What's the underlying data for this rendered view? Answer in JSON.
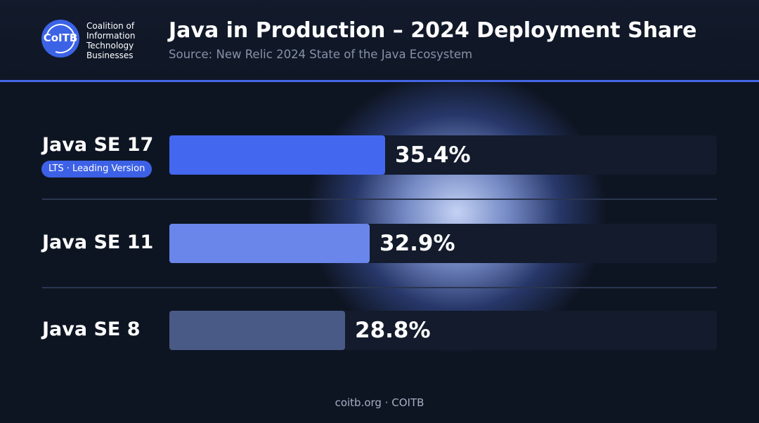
{
  "header": {
    "logo_text": "CoITB",
    "org_name": [
      "Coalition of",
      "Information",
      "Technology",
      "Businesses"
    ],
    "title": "Java in Production – 2024 Deployment Share",
    "subtitle": "Source: New Relic 2024 State of the Java Ecosystem"
  },
  "footer": "coitb.org · COITB",
  "chart_data": {
    "type": "bar",
    "orientation": "horizontal",
    "categories": [
      "Java SE 17",
      "Java SE 11",
      "Java SE 8"
    ],
    "values": [
      35.4,
      32.9,
      28.8
    ],
    "value_labels": [
      "35.4%",
      "32.9%",
      "28.8%"
    ],
    "badges": [
      "LTS · Leading Version",
      "",
      ""
    ],
    "xlim": [
      0,
      100
    ],
    "unit": "%",
    "grid": false,
    "colors": [
      "#4467ef",
      "#6a86ea",
      "#4a5a86"
    ],
    "track_color": "#131b2c"
  }
}
